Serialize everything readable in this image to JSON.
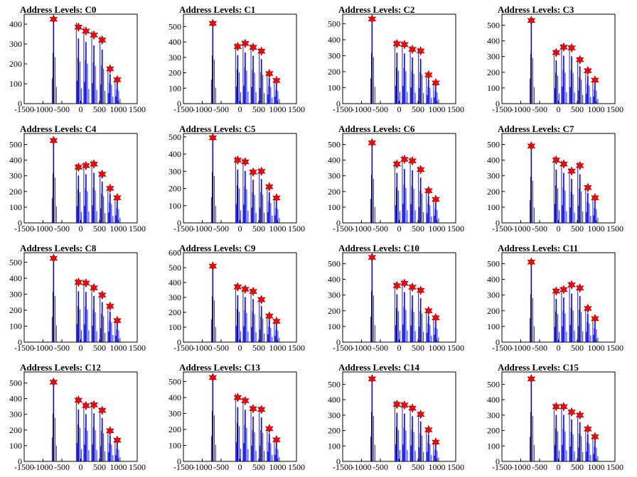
{
  "figure": {
    "colors": {
      "histogram": "#0000ff",
      "peak_marker": "#ff0000",
      "axes": "#000000"
    }
  },
  "chart_data": [
    {
      "type": "bar",
      "title": "Address Levels: C0",
      "xlabel": "",
      "ylabel": "",
      "xlim": [
        -1500,
        1500
      ],
      "ylim": [
        0,
        450
      ],
      "xticks": [
        -1500,
        -1000,
        -500,
        0,
        500,
        1000,
        1500
      ],
      "yticks": [
        0,
        100,
        200,
        300,
        400
      ],
      "peaks": [
        {
          "x": -720,
          "y": 425
        },
        {
          "x": -60,
          "y": 385
        },
        {
          "x": 140,
          "y": 365
        },
        {
          "x": 350,
          "y": 345
        },
        {
          "x": 570,
          "y": 320
        },
        {
          "x": 780,
          "y": 175
        },
        {
          "x": 970,
          "y": 120
        }
      ]
    },
    {
      "type": "bar",
      "title": "Address Levels: C1",
      "xlabel": "",
      "ylabel": "",
      "xlim": [
        -1500,
        1500
      ],
      "ylim": [
        0,
        580
      ],
      "xticks": [
        -1500,
        -1000,
        -500,
        0,
        500,
        1000,
        1500
      ],
      "yticks": [
        0,
        100,
        200,
        300,
        400,
        500
      ],
      "peaks": [
        {
          "x": -720,
          "y": 520
        },
        {
          "x": -60,
          "y": 370
        },
        {
          "x": 140,
          "y": 390
        },
        {
          "x": 350,
          "y": 365
        },
        {
          "x": 570,
          "y": 340
        },
        {
          "x": 780,
          "y": 195
        },
        {
          "x": 970,
          "y": 150
        }
      ]
    },
    {
      "type": "bar",
      "title": "Address Levels: C2",
      "xlabel": "",
      "ylabel": "",
      "xlim": [
        -1500,
        1500
      ],
      "ylim": [
        0,
        560
      ],
      "xticks": [
        -1500,
        -1000,
        -500,
        0,
        500,
        1000,
        1500
      ],
      "yticks": [
        0,
        100,
        200,
        300,
        400,
        500
      ],
      "peaks": [
        {
          "x": -720,
          "y": 530
        },
        {
          "x": -60,
          "y": 375
        },
        {
          "x": 140,
          "y": 370
        },
        {
          "x": 350,
          "y": 340
        },
        {
          "x": 570,
          "y": 330
        },
        {
          "x": 780,
          "y": 180
        },
        {
          "x": 970,
          "y": 130
        }
      ]
    },
    {
      "type": "bar",
      "title": "Address Levels: C3",
      "xlabel": "",
      "ylabel": "",
      "xlim": [
        -1500,
        1500
      ],
      "ylim": [
        0,
        570
      ],
      "xticks": [
        -1500,
        -1000,
        -500,
        0,
        500,
        1000,
        1500
      ],
      "yticks": [
        0,
        100,
        200,
        300,
        400,
        500
      ],
      "peaks": [
        {
          "x": -720,
          "y": 530
        },
        {
          "x": -60,
          "y": 325
        },
        {
          "x": 140,
          "y": 360
        },
        {
          "x": 350,
          "y": 355
        },
        {
          "x": 570,
          "y": 280
        },
        {
          "x": 780,
          "y": 210
        },
        {
          "x": 970,
          "y": 150
        }
      ]
    },
    {
      "type": "bar",
      "title": "Address Levels: C4",
      "xlabel": "",
      "ylabel": "",
      "xlim": [
        -1500,
        1500
      ],
      "ylim": [
        0,
        570
      ],
      "xticks": [
        -1500,
        -1000,
        -500,
        0,
        500,
        1000,
        1500
      ],
      "yticks": [
        0,
        100,
        200,
        300,
        400,
        500
      ],
      "peaks": [
        {
          "x": -720,
          "y": 525
        },
        {
          "x": -60,
          "y": 355
        },
        {
          "x": 140,
          "y": 365
        },
        {
          "x": 350,
          "y": 375
        },
        {
          "x": 570,
          "y": 310
        },
        {
          "x": 780,
          "y": 220
        },
        {
          "x": 970,
          "y": 160
        }
      ]
    },
    {
      "type": "bar",
      "title": "Address Levels: C5",
      "xlabel": "",
      "ylabel": "",
      "xlim": [
        -1500,
        1500
      ],
      "ylim": [
        0,
        520
      ],
      "xticks": [
        -1500,
        -1000,
        -500,
        0,
        500,
        1000,
        1500
      ],
      "yticks": [
        0,
        100,
        200,
        300,
        400,
        500
      ],
      "peaks": [
        {
          "x": -720,
          "y": 495
        },
        {
          "x": -60,
          "y": 365
        },
        {
          "x": 140,
          "y": 355
        },
        {
          "x": 350,
          "y": 295
        },
        {
          "x": 570,
          "y": 300
        },
        {
          "x": 780,
          "y": 210
        },
        {
          "x": 970,
          "y": 145
        }
      ]
    },
    {
      "type": "bar",
      "title": "Address Levels: C6",
      "xlabel": "",
      "ylabel": "",
      "xlim": [
        -1500,
        1500
      ],
      "ylim": [
        0,
        570
      ],
      "xticks": [
        -1500,
        -1000,
        -500,
        0,
        500,
        1000,
        1500
      ],
      "yticks": [
        0,
        100,
        200,
        300,
        400,
        500
      ],
      "peaks": [
        {
          "x": -720,
          "y": 510
        },
        {
          "x": -60,
          "y": 375
        },
        {
          "x": 140,
          "y": 405
        },
        {
          "x": 350,
          "y": 395
        },
        {
          "x": 570,
          "y": 340
        },
        {
          "x": 780,
          "y": 205
        },
        {
          "x": 970,
          "y": 150
        }
      ]
    },
    {
      "type": "bar",
      "title": "Address Levels: C7",
      "xlabel": "",
      "ylabel": "",
      "xlim": [
        -1500,
        1500
      ],
      "ylim": [
        0,
        570
      ],
      "xticks": [
        -1500,
        -1000,
        -500,
        0,
        500,
        1000,
        1500
      ],
      "yticks": [
        0,
        100,
        200,
        300,
        400,
        500
      ],
      "peaks": [
        {
          "x": -720,
          "y": 490
        },
        {
          "x": -60,
          "y": 400
        },
        {
          "x": 140,
          "y": 375
        },
        {
          "x": 350,
          "y": 330
        },
        {
          "x": 570,
          "y": 365
        },
        {
          "x": 780,
          "y": 225
        },
        {
          "x": 970,
          "y": 160
        }
      ]
    },
    {
      "type": "bar",
      "title": "Address Levels: C8",
      "xlabel": "",
      "ylabel": "",
      "xlim": [
        -1500,
        1500
      ],
      "ylim": [
        0,
        560
      ],
      "xticks": [
        -1500,
        -1000,
        -500,
        0,
        500,
        1000,
        1500
      ],
      "yticks": [
        0,
        100,
        200,
        300,
        400,
        500
      ],
      "peaks": [
        {
          "x": -720,
          "y": 525
        },
        {
          "x": -60,
          "y": 375
        },
        {
          "x": 140,
          "y": 370
        },
        {
          "x": 350,
          "y": 340
        },
        {
          "x": 570,
          "y": 295
        },
        {
          "x": 780,
          "y": 225
        },
        {
          "x": 970,
          "y": 135
        }
      ]
    },
    {
      "type": "bar",
      "title": "Address Levels: C9",
      "xlabel": "",
      "ylabel": "",
      "xlim": [
        -1500,
        1500
      ],
      "ylim": [
        0,
        600
      ],
      "xticks": [
        -1500,
        -1000,
        -500,
        0,
        500,
        1000,
        1500
      ],
      "yticks": [
        0,
        100,
        200,
        300,
        400,
        500,
        600
      ],
      "peaks": [
        {
          "x": -720,
          "y": 510
        },
        {
          "x": -60,
          "y": 370
        },
        {
          "x": 140,
          "y": 355
        },
        {
          "x": 350,
          "y": 340
        },
        {
          "x": 570,
          "y": 285
        },
        {
          "x": 780,
          "y": 175
        },
        {
          "x": 970,
          "y": 140
        }
      ]
    },
    {
      "type": "bar",
      "title": "Address Levels: C10",
      "xlabel": "",
      "ylabel": "",
      "xlim": [
        -1500,
        1500
      ],
      "ylim": [
        0,
        570
      ],
      "xticks": [
        -1500,
        -1000,
        -500,
        0,
        500,
        1000,
        1500
      ],
      "yticks": [
        0,
        100,
        200,
        300,
        400,
        500
      ],
      "peaks": [
        {
          "x": -720,
          "y": 540
        },
        {
          "x": -60,
          "y": 360
        },
        {
          "x": 140,
          "y": 375
        },
        {
          "x": 350,
          "y": 350
        },
        {
          "x": 570,
          "y": 330
        },
        {
          "x": 780,
          "y": 200
        },
        {
          "x": 970,
          "y": 155
        }
      ]
    },
    {
      "type": "bar",
      "title": "Address Levels: C11",
      "xlabel": "",
      "ylabel": "",
      "xlim": [
        -1500,
        1500
      ],
      "ylim": [
        0,
        570
      ],
      "xticks": [
        -1500,
        -1000,
        -500,
        0,
        500,
        1000,
        1500
      ],
      "yticks": [
        0,
        100,
        200,
        300,
        400,
        500
      ],
      "peaks": [
        {
          "x": -720,
          "y": 510
        },
        {
          "x": -60,
          "y": 325
        },
        {
          "x": 140,
          "y": 335
        },
        {
          "x": 350,
          "y": 365
        },
        {
          "x": 570,
          "y": 345
        },
        {
          "x": 780,
          "y": 215
        },
        {
          "x": 970,
          "y": 150
        }
      ]
    },
    {
      "type": "bar",
      "title": "Address Levels: C12",
      "xlabel": "",
      "ylabel": "",
      "xlim": [
        -1500,
        1500
      ],
      "ylim": [
        0,
        570
      ],
      "xticks": [
        -1500,
        -1000,
        -500,
        0,
        500,
        1000,
        1500
      ],
      "yticks": [
        0,
        100,
        200,
        300,
        400,
        500
      ],
      "peaks": [
        {
          "x": -720,
          "y": 505
        },
        {
          "x": -60,
          "y": 390
        },
        {
          "x": 140,
          "y": 355
        },
        {
          "x": 350,
          "y": 360
        },
        {
          "x": 570,
          "y": 325
        },
        {
          "x": 780,
          "y": 195
        },
        {
          "x": 970,
          "y": 135
        }
      ]
    },
    {
      "type": "bar",
      "title": "Address Levels: C13",
      "xlabel": "",
      "ylabel": "",
      "xlim": [
        -1500,
        1500
      ],
      "ylim": [
        0,
        560
      ],
      "xticks": [
        -1500,
        -1000,
        -500,
        0,
        500,
        1000,
        1500
      ],
      "yticks": [
        0,
        100,
        200,
        300,
        400,
        500
      ],
      "peaks": [
        {
          "x": -720,
          "y": 525
        },
        {
          "x": -60,
          "y": 400
        },
        {
          "x": 140,
          "y": 380
        },
        {
          "x": 350,
          "y": 330
        },
        {
          "x": 570,
          "y": 325
        },
        {
          "x": 780,
          "y": 205
        },
        {
          "x": 970,
          "y": 135
        }
      ]
    },
    {
      "type": "bar",
      "title": "Address Levels: C14",
      "xlabel": "",
      "ylabel": "",
      "xlim": [
        -1500,
        1500
      ],
      "ylim": [
        0,
        580
      ],
      "xticks": [
        -1500,
        -1000,
        -500,
        0,
        500,
        1000,
        1500
      ],
      "yticks": [
        0,
        100,
        200,
        300,
        400,
        500
      ],
      "peaks": [
        {
          "x": -720,
          "y": 535
        },
        {
          "x": -60,
          "y": 370
        },
        {
          "x": 140,
          "y": 365
        },
        {
          "x": 350,
          "y": 345
        },
        {
          "x": 570,
          "y": 305
        },
        {
          "x": 780,
          "y": 205
        },
        {
          "x": 970,
          "y": 125
        }
      ]
    },
    {
      "type": "bar",
      "title": "Address Levels: C15",
      "xlabel": "",
      "ylabel": "",
      "xlim": [
        -1500,
        1500
      ],
      "ylim": [
        0,
        580
      ],
      "xticks": [
        -1500,
        -1000,
        -500,
        0,
        500,
        1000,
        1500
      ],
      "yticks": [
        0,
        100,
        200,
        300,
        400,
        500
      ],
      "peaks": [
        {
          "x": -720,
          "y": 535
        },
        {
          "x": -60,
          "y": 355
        },
        {
          "x": 140,
          "y": 355
        },
        {
          "x": 350,
          "y": 320
        },
        {
          "x": 570,
          "y": 300
        },
        {
          "x": 780,
          "y": 210
        },
        {
          "x": 970,
          "y": 160
        }
      ]
    }
  ]
}
